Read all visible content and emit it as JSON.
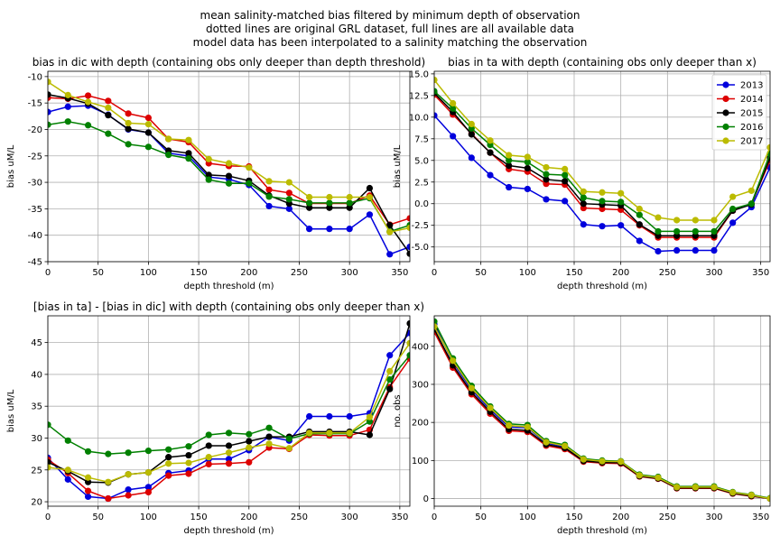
{
  "figure": {
    "title_lines": [
      "mean salinity-matched bias filtered by minimum depth of observation",
      "dotted lines are original GRL dataset, full lines are all available data",
      "model data has been interpolated to a salinity matching the observation"
    ]
  },
  "colors": {
    "2013": "#0000dd",
    "2014": "#dd0000",
    "2015": "#000000",
    "2016": "#008000",
    "2017": "#bbbb00"
  },
  "chart_data": [
    {
      "type": "line",
      "title": "bias in dic with depth (containing obs only deeper than depth threshold)",
      "xlabel": "depth threshold (m)",
      "ylabel": "bias uM/L",
      "xlim": [
        0,
        360
      ],
      "ylim": [
        -45,
        -9
      ],
      "xticks": [
        0,
        50,
        100,
        150,
        200,
        250,
        300,
        350
      ],
      "yticks": [
        -45,
        -40,
        -35,
        -30,
        -25,
        -20,
        -15,
        -10
      ],
      "grid": true,
      "x": [
        0,
        20,
        40,
        60,
        80,
        100,
        120,
        140,
        160,
        180,
        200,
        220,
        240,
        260,
        280,
        300,
        320,
        340,
        360
      ],
      "series": [
        {
          "name": "2013",
          "color": "#0000dd",
          "values": [
            -16.7,
            -15.7,
            -15.5,
            -17.2,
            -20.0,
            -20.6,
            -24.5,
            -25.0,
            -29.0,
            -29.4,
            -30.5,
            -34.5,
            -35.0,
            -38.8,
            -38.8,
            -38.8,
            -36.1,
            -43.6,
            -42.2
          ]
        },
        {
          "name": "2014",
          "color": "#dd0000",
          "values": [
            -14.0,
            -14.2,
            -13.6,
            -14.6,
            -17.0,
            -17.8,
            -21.8,
            -22.4,
            -26.4,
            -26.9,
            -27.0,
            -31.4,
            -32.0,
            -34.0,
            -34.0,
            -34.0,
            -32.5,
            -38.0,
            -36.8
          ]
        },
        {
          "name": "2015",
          "color": "#000000",
          "values": [
            -13.4,
            -14.1,
            -15.1,
            -17.3,
            -19.9,
            -20.6,
            -24.0,
            -24.5,
            -28.6,
            -28.8,
            -29.7,
            -32.5,
            -34.0,
            -34.8,
            -34.8,
            -34.8,
            -31.1,
            -38.1,
            -43.5
          ]
        },
        {
          "name": "2016",
          "color": "#008000",
          "values": [
            -19.1,
            -18.5,
            -19.2,
            -20.8,
            -22.8,
            -23.3,
            -24.8,
            -25.5,
            -29.5,
            -30.2,
            -30.2,
            -32.7,
            -33.2,
            -33.9,
            -33.9,
            -33.9,
            -33.0,
            -39.3,
            -38.1
          ]
        },
        {
          "name": "2017",
          "color": "#bbbb00",
          "values": [
            -11.0,
            -13.5,
            -14.8,
            -15.9,
            -18.8,
            -19.0,
            -21.8,
            -22.0,
            -25.6,
            -26.4,
            -27.2,
            -29.8,
            -30.0,
            -32.8,
            -32.8,
            -32.8,
            -32.8,
            -39.4,
            -38.6
          ]
        }
      ]
    },
    {
      "type": "line",
      "title": "bias in ta with depth (containing obs only deeper than x)",
      "xlabel": "depth threshold (m)",
      "ylabel": "bias uM/L",
      "xlim": [
        0,
        360
      ],
      "ylim": [
        -6.7,
        15.3
      ],
      "xticks": [
        0,
        50,
        100,
        150,
        200,
        250,
        300,
        350
      ],
      "yticks": [
        -5.0,
        -2.5,
        0.0,
        2.5,
        5.0,
        7.5,
        10.0,
        12.5,
        15.0
      ],
      "ytick_labels": [
        "-5.0",
        "-2.5",
        "0.0",
        "2.5",
        "5.0",
        "7.5",
        "10.0",
        "12.5",
        "15.0"
      ],
      "grid": true,
      "legend": "top-right",
      "x": [
        0,
        20,
        40,
        60,
        80,
        100,
        120,
        140,
        160,
        180,
        200,
        220,
        240,
        260,
        280,
        300,
        320,
        340,
        360
      ],
      "series": [
        {
          "name": "2013",
          "color": "#0000dd",
          "values": [
            10.2,
            7.8,
            5.3,
            3.3,
            1.9,
            1.7,
            0.5,
            0.3,
            -2.4,
            -2.6,
            -2.5,
            -4.3,
            -5.5,
            -5.4,
            -5.4,
            -5.4,
            -2.2,
            -0.4,
            4.2
          ]
        },
        {
          "name": "2014",
          "color": "#dd0000",
          "values": [
            12.6,
            10.3,
            8.1,
            5.9,
            4.0,
            3.7,
            2.3,
            2.2,
            -0.5,
            -0.6,
            -0.7,
            -2.5,
            -3.9,
            -3.9,
            -3.9,
            -3.9,
            -0.8,
            0.0,
            5.0
          ]
        },
        {
          "name": "2015",
          "color": "#000000",
          "values": [
            12.8,
            10.6,
            8.0,
            5.9,
            4.4,
            4.1,
            2.8,
            2.6,
            0.0,
            -0.1,
            -0.2,
            -2.4,
            -3.7,
            -3.7,
            -3.7,
            -3.7,
            -0.8,
            -0.1,
            5.3
          ]
        },
        {
          "name": "2016",
          "color": "#008000",
          "values": [
            13.0,
            11.0,
            8.7,
            6.8,
            5.0,
            4.8,
            3.4,
            3.3,
            0.7,
            0.3,
            0.2,
            -1.3,
            -3.2,
            -3.2,
            -3.2,
            -3.2,
            -0.6,
            0.0,
            5.8
          ]
        },
        {
          "name": "2017",
          "color": "#bbbb00",
          "values": [
            14.3,
            11.6,
            9.2,
            7.3,
            5.6,
            5.4,
            4.2,
            4.0,
            1.4,
            1.3,
            1.2,
            -0.6,
            -1.6,
            -1.9,
            -1.9,
            -1.9,
            0.8,
            1.5,
            6.5
          ]
        }
      ]
    },
    {
      "type": "line",
      "title": "[bias in ta] - [bias in dic] with depth (containing obs only deeper than x)",
      "xlabel": "depth threshold (m)",
      "ylabel": "bias uM/L",
      "xlim": [
        0,
        360
      ],
      "ylim": [
        19.3,
        49.2
      ],
      "xticks": [
        0,
        50,
        100,
        150,
        200,
        250,
        300,
        350
      ],
      "yticks": [
        20,
        25,
        30,
        35,
        40,
        45
      ],
      "grid": true,
      "x": [
        0,
        20,
        40,
        60,
        80,
        100,
        120,
        140,
        160,
        180,
        200,
        220,
        240,
        260,
        280,
        300,
        320,
        340,
        360
      ],
      "series": [
        {
          "name": "2013",
          "color": "#0000dd",
          "values": [
            26.9,
            23.5,
            20.8,
            20.5,
            21.9,
            22.3,
            24.5,
            24.9,
            26.7,
            26.7,
            28.1,
            30.2,
            29.6,
            33.4,
            33.4,
            33.4,
            33.9,
            43.0,
            46.5
          ]
        },
        {
          "name": "2014",
          "color": "#dd0000",
          "values": [
            26.6,
            24.5,
            21.7,
            20.5,
            21.0,
            21.5,
            24.1,
            24.4,
            25.9,
            26.0,
            26.2,
            28.5,
            28.3,
            30.5,
            30.4,
            30.4,
            31.3,
            38.0,
            42.5
          ]
        },
        {
          "name": "2015",
          "color": "#000000",
          "values": [
            26.2,
            24.8,
            23.1,
            23.0,
            24.3,
            24.6,
            27.0,
            27.3,
            28.8,
            28.8,
            29.5,
            30.2,
            30.2,
            31.0,
            31.0,
            31.0,
            30.5,
            37.7,
            48.0
          ]
        },
        {
          "name": "2016",
          "color": "#008000",
          "values": [
            32.1,
            29.6,
            27.9,
            27.5,
            27.7,
            28.0,
            28.2,
            28.7,
            30.5,
            30.8,
            30.6,
            31.6,
            29.9,
            30.7,
            30.7,
            30.7,
            32.6,
            39.2,
            43.0
          ]
        },
        {
          "name": "2017",
          "color": "#bbbb00",
          "values": [
            25.4,
            25.0,
            23.8,
            23.1,
            24.3,
            24.6,
            26.0,
            26.1,
            27.0,
            27.7,
            28.5,
            29.1,
            28.4,
            30.8,
            30.8,
            30.8,
            33.3,
            40.5,
            44.9
          ]
        }
      ]
    },
    {
      "type": "line",
      "title": "",
      "xlabel": "depth threshold (m)",
      "ylabel": "no. obs",
      "xlim": [
        0,
        360
      ],
      "ylim": [
        -20,
        480
      ],
      "xticks": [
        0,
        50,
        100,
        150,
        200,
        250,
        300,
        350
      ],
      "yticks": [
        0,
        100,
        200,
        300,
        400
      ],
      "grid": true,
      "x": [
        0,
        20,
        40,
        60,
        80,
        100,
        120,
        140,
        160,
        180,
        200,
        220,
        240,
        260,
        280,
        300,
        320,
        340,
        360
      ],
      "series": [
        {
          "name": "2013",
          "color": "#0000dd",
          "values": [
            458,
            358,
            286,
            234,
            188,
            186,
            146,
            136,
            101,
            97,
            96,
            61,
            55,
            30,
            30,
            30,
            15,
            8,
            0
          ]
        },
        {
          "name": "2014",
          "color": "#dd0000",
          "values": [
            438,
            344,
            274,
            223,
            178,
            175,
            139,
            130,
            97,
            93,
            92,
            58,
            52,
            27,
            27,
            27,
            13,
            6,
            0
          ]
        },
        {
          "name": "2015",
          "color": "#000000",
          "values": [
            445,
            350,
            279,
            228,
            182,
            179,
            142,
            133,
            99,
            95,
            94,
            59,
            53,
            28,
            28,
            28,
            14,
            7,
            0
          ]
        },
        {
          "name": "2016",
          "color": "#008000",
          "values": [
            465,
            368,
            296,
            242,
            196,
            193,
            151,
            141,
            105,
            100,
            98,
            63,
            57,
            32,
            32,
            32,
            17,
            10,
            1
          ]
        },
        {
          "name": "2017",
          "color": "#bbbb00",
          "values": [
            452,
            362,
            290,
            238,
            192,
            188,
            148,
            138,
            103,
            98,
            97,
            61,
            55,
            30,
            30,
            30,
            16,
            9,
            0
          ]
        }
      ]
    }
  ]
}
